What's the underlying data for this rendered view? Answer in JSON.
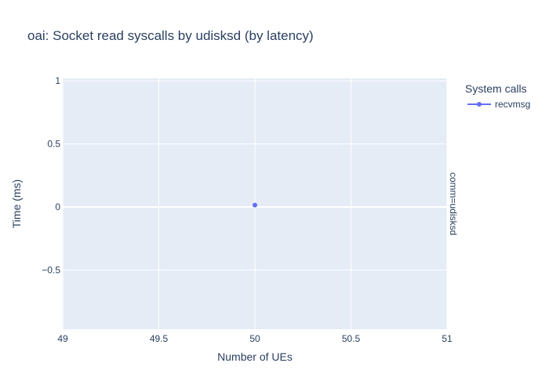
{
  "chart_data": {
    "type": "scatter",
    "title": "oai: Socket read syscalls by udisksd (by latency)",
    "xlabel": "Number of UEs",
    "ylabel": "Time (ms)",
    "xlim": [
      49,
      51
    ],
    "ylim": [
      -0.97,
      1.02
    ],
    "x_ticks": [
      49,
      49.5,
      50,
      50.5,
      51
    ],
    "x_tick_labels": [
      "49",
      "49.5",
      "50",
      "50.5",
      "51"
    ],
    "y_ticks": [
      -0.5,
      0,
      0.5,
      1
    ],
    "y_tick_labels": [
      "−0.5",
      "0",
      "0.5",
      "1"
    ],
    "grid": true,
    "facet_label": "comm=udisksd",
    "legend": {
      "title": "System calls",
      "position": "top-right"
    },
    "series": [
      {
        "name": "recvmsg",
        "color": "#636efa",
        "points": [
          {
            "x": 50,
            "y": 0.015
          }
        ]
      }
    ],
    "colors": {
      "plot_bg": "#e5ecf6",
      "grid": "#ffffff",
      "text": "#2a3f5f",
      "tick_text": "#2a3f5f"
    }
  }
}
